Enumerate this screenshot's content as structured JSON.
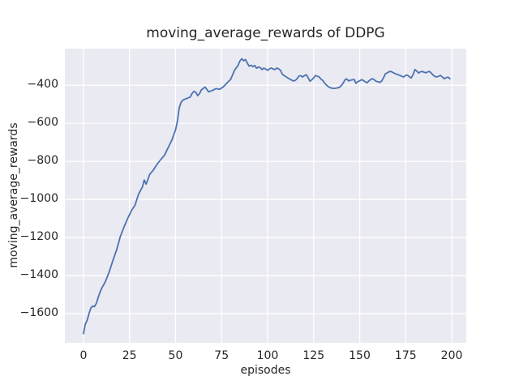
{
  "figure": {
    "title": "moving_average_rewards of DDPG",
    "xlabel": "episodes",
    "ylabel": "moving_average_rewards"
  },
  "colors": {
    "figure_bg": "#ffffff",
    "axes_bg": "#eaeaf2",
    "grid": "#ffffff",
    "line": "#4c72b0",
    "text": "#262626"
  },
  "chart_data": {
    "type": "line",
    "title": "moving_average_rewards of DDPG",
    "xlabel": "episodes",
    "ylabel": "moving_average_rewards",
    "xlim": [
      -10.1,
      207.9
    ],
    "ylim": [
      -1753,
      -208
    ],
    "grid": true,
    "legend_visible": false,
    "x_ticks": {
      "values": [
        0,
        25,
        50,
        75,
        100,
        125,
        150,
        175,
        200
      ],
      "labels": [
        "0",
        "25",
        "50",
        "75",
        "100",
        "125",
        "150",
        "175",
        "200"
      ]
    },
    "y_ticks": {
      "values": [
        -400,
        -600,
        -800,
        -1000,
        -1200,
        -1400,
        -1600
      ],
      "labels": [
        "−400",
        "−600",
        "−800",
        "−1000",
        "−1200",
        "−1400",
        "−1600"
      ]
    },
    "series": [
      {
        "name": "moving_average_rewards",
        "color": "#4c72b0",
        "line_width": 1.8,
        "points": [
          [
            0,
            -1705
          ],
          [
            1,
            -1655
          ],
          [
            2,
            -1635
          ],
          [
            3,
            -1600
          ],
          [
            4,
            -1570
          ],
          [
            5,
            -1560
          ],
          [
            6,
            -1563
          ],
          [
            7,
            -1545
          ],
          [
            8,
            -1515
          ],
          [
            9,
            -1487
          ],
          [
            10,
            -1465
          ],
          [
            12,
            -1430
          ],
          [
            14,
            -1380
          ],
          [
            16,
            -1320
          ],
          [
            18,
            -1265
          ],
          [
            20,
            -1195
          ],
          [
            22,
            -1145
          ],
          [
            24,
            -1100
          ],
          [
            26,
            -1060
          ],
          [
            28,
            -1030
          ],
          [
            29,
            -1000
          ],
          [
            30,
            -970
          ],
          [
            32,
            -935
          ],
          [
            33,
            -898
          ],
          [
            34,
            -920
          ],
          [
            36,
            -868
          ],
          [
            38,
            -845
          ],
          [
            40,
            -815
          ],
          [
            42,
            -790
          ],
          [
            44,
            -768
          ],
          [
            46,
            -728
          ],
          [
            48,
            -688
          ],
          [
            50,
            -635
          ],
          [
            51,
            -590
          ],
          [
            52,
            -520
          ],
          [
            53,
            -490
          ],
          [
            54,
            -478
          ],
          [
            56,
            -470
          ],
          [
            58,
            -462
          ],
          [
            59,
            -443
          ],
          [
            60,
            -432
          ],
          [
            61,
            -437
          ],
          [
            62,
            -455
          ],
          [
            63,
            -445
          ],
          [
            64,
            -425
          ],
          [
            66,
            -410
          ],
          [
            67,
            -422
          ],
          [
            68,
            -435
          ],
          [
            70,
            -428
          ],
          [
            72,
            -418
          ],
          [
            74,
            -422
          ],
          [
            76,
            -408
          ],
          [
            78,
            -388
          ],
          [
            79,
            -378
          ],
          [
            80,
            -368
          ],
          [
            81,
            -345
          ],
          [
            82,
            -322
          ],
          [
            84,
            -295
          ],
          [
            85,
            -272
          ],
          [
            86,
            -261
          ],
          [
            87,
            -272
          ],
          [
            88,
            -265
          ],
          [
            89,
            -285
          ],
          [
            90,
            -300
          ],
          [
            91,
            -295
          ],
          [
            92,
            -303
          ],
          [
            93,
            -296
          ],
          [
            94,
            -311
          ],
          [
            95,
            -305
          ],
          [
            96,
            -308
          ],
          [
            97,
            -318
          ],
          [
            98,
            -310
          ],
          [
            99,
            -316
          ],
          [
            100,
            -322
          ],
          [
            101,
            -314
          ],
          [
            102,
            -310
          ],
          [
            103,
            -315
          ],
          [
            104,
            -318
          ],
          [
            105,
            -310
          ],
          [
            106,
            -314
          ],
          [
            107,
            -322
          ],
          [
            108,
            -342
          ],
          [
            109,
            -350
          ],
          [
            110,
            -356
          ],
          [
            112,
            -368
          ],
          [
            114,
            -378
          ],
          [
            115,
            -375
          ],
          [
            116,
            -366
          ],
          [
            117,
            -352
          ],
          [
            118,
            -350
          ],
          [
            119,
            -357
          ],
          [
            120,
            -350
          ],
          [
            121,
            -345
          ],
          [
            122,
            -360
          ],
          [
            123,
            -379
          ],
          [
            124,
            -372
          ],
          [
            125,
            -362
          ],
          [
            126,
            -349
          ],
          [
            127,
            -353
          ],
          [
            128,
            -357
          ],
          [
            129,
            -368
          ],
          [
            130,
            -376
          ],
          [
            131,
            -390
          ],
          [
            132,
            -400
          ],
          [
            133,
            -408
          ],
          [
            134,
            -413
          ],
          [
            135,
            -416
          ],
          [
            136,
            -417
          ],
          [
            137,
            -416
          ],
          [
            138,
            -414
          ],
          [
            139,
            -412
          ],
          [
            140,
            -402
          ],
          [
            141,
            -390
          ],
          [
            142,
            -372
          ],
          [
            143,
            -367
          ],
          [
            144,
            -378
          ],
          [
            145,
            -374
          ],
          [
            146,
            -372
          ],
          [
            147,
            -370
          ],
          [
            148,
            -390
          ],
          [
            149,
            -382
          ],
          [
            150,
            -377
          ],
          [
            151,
            -371
          ],
          [
            152,
            -375
          ],
          [
            153,
            -382
          ],
          [
            154,
            -387
          ],
          [
            155,
            -378
          ],
          [
            156,
            -370
          ],
          [
            157,
            -366
          ],
          [
            158,
            -372
          ],
          [
            159,
            -380
          ],
          [
            160,
            -382
          ],
          [
            161,
            -385
          ],
          [
            162,
            -378
          ],
          [
            163,
            -360
          ],
          [
            164,
            -340
          ],
          [
            165,
            -335
          ],
          [
            166,
            -329
          ],
          [
            167,
            -328
          ],
          [
            168,
            -333
          ],
          [
            169,
            -338
          ],
          [
            170,
            -342
          ],
          [
            171,
            -346
          ],
          [
            172,
            -349
          ],
          [
            173,
            -354
          ],
          [
            174,
            -357
          ],
          [
            175,
            -348
          ],
          [
            176,
            -347
          ],
          [
            177,
            -356
          ],
          [
            178,
            -362
          ],
          [
            179,
            -345
          ],
          [
            180,
            -318
          ],
          [
            181,
            -326
          ],
          [
            182,
            -336
          ],
          [
            183,
            -330
          ],
          [
            184,
            -328
          ],
          [
            185,
            -332
          ],
          [
            186,
            -335
          ],
          [
            187,
            -330
          ],
          [
            188,
            -328
          ],
          [
            189,
            -338
          ],
          [
            190,
            -348
          ],
          [
            191,
            -355
          ],
          [
            192,
            -357
          ],
          [
            193,
            -352
          ],
          [
            194,
            -349
          ],
          [
            195,
            -358
          ],
          [
            196,
            -366
          ],
          [
            197,
            -360
          ],
          [
            198,
            -358
          ],
          [
            199,
            -366
          ]
        ]
      }
    ]
  }
}
